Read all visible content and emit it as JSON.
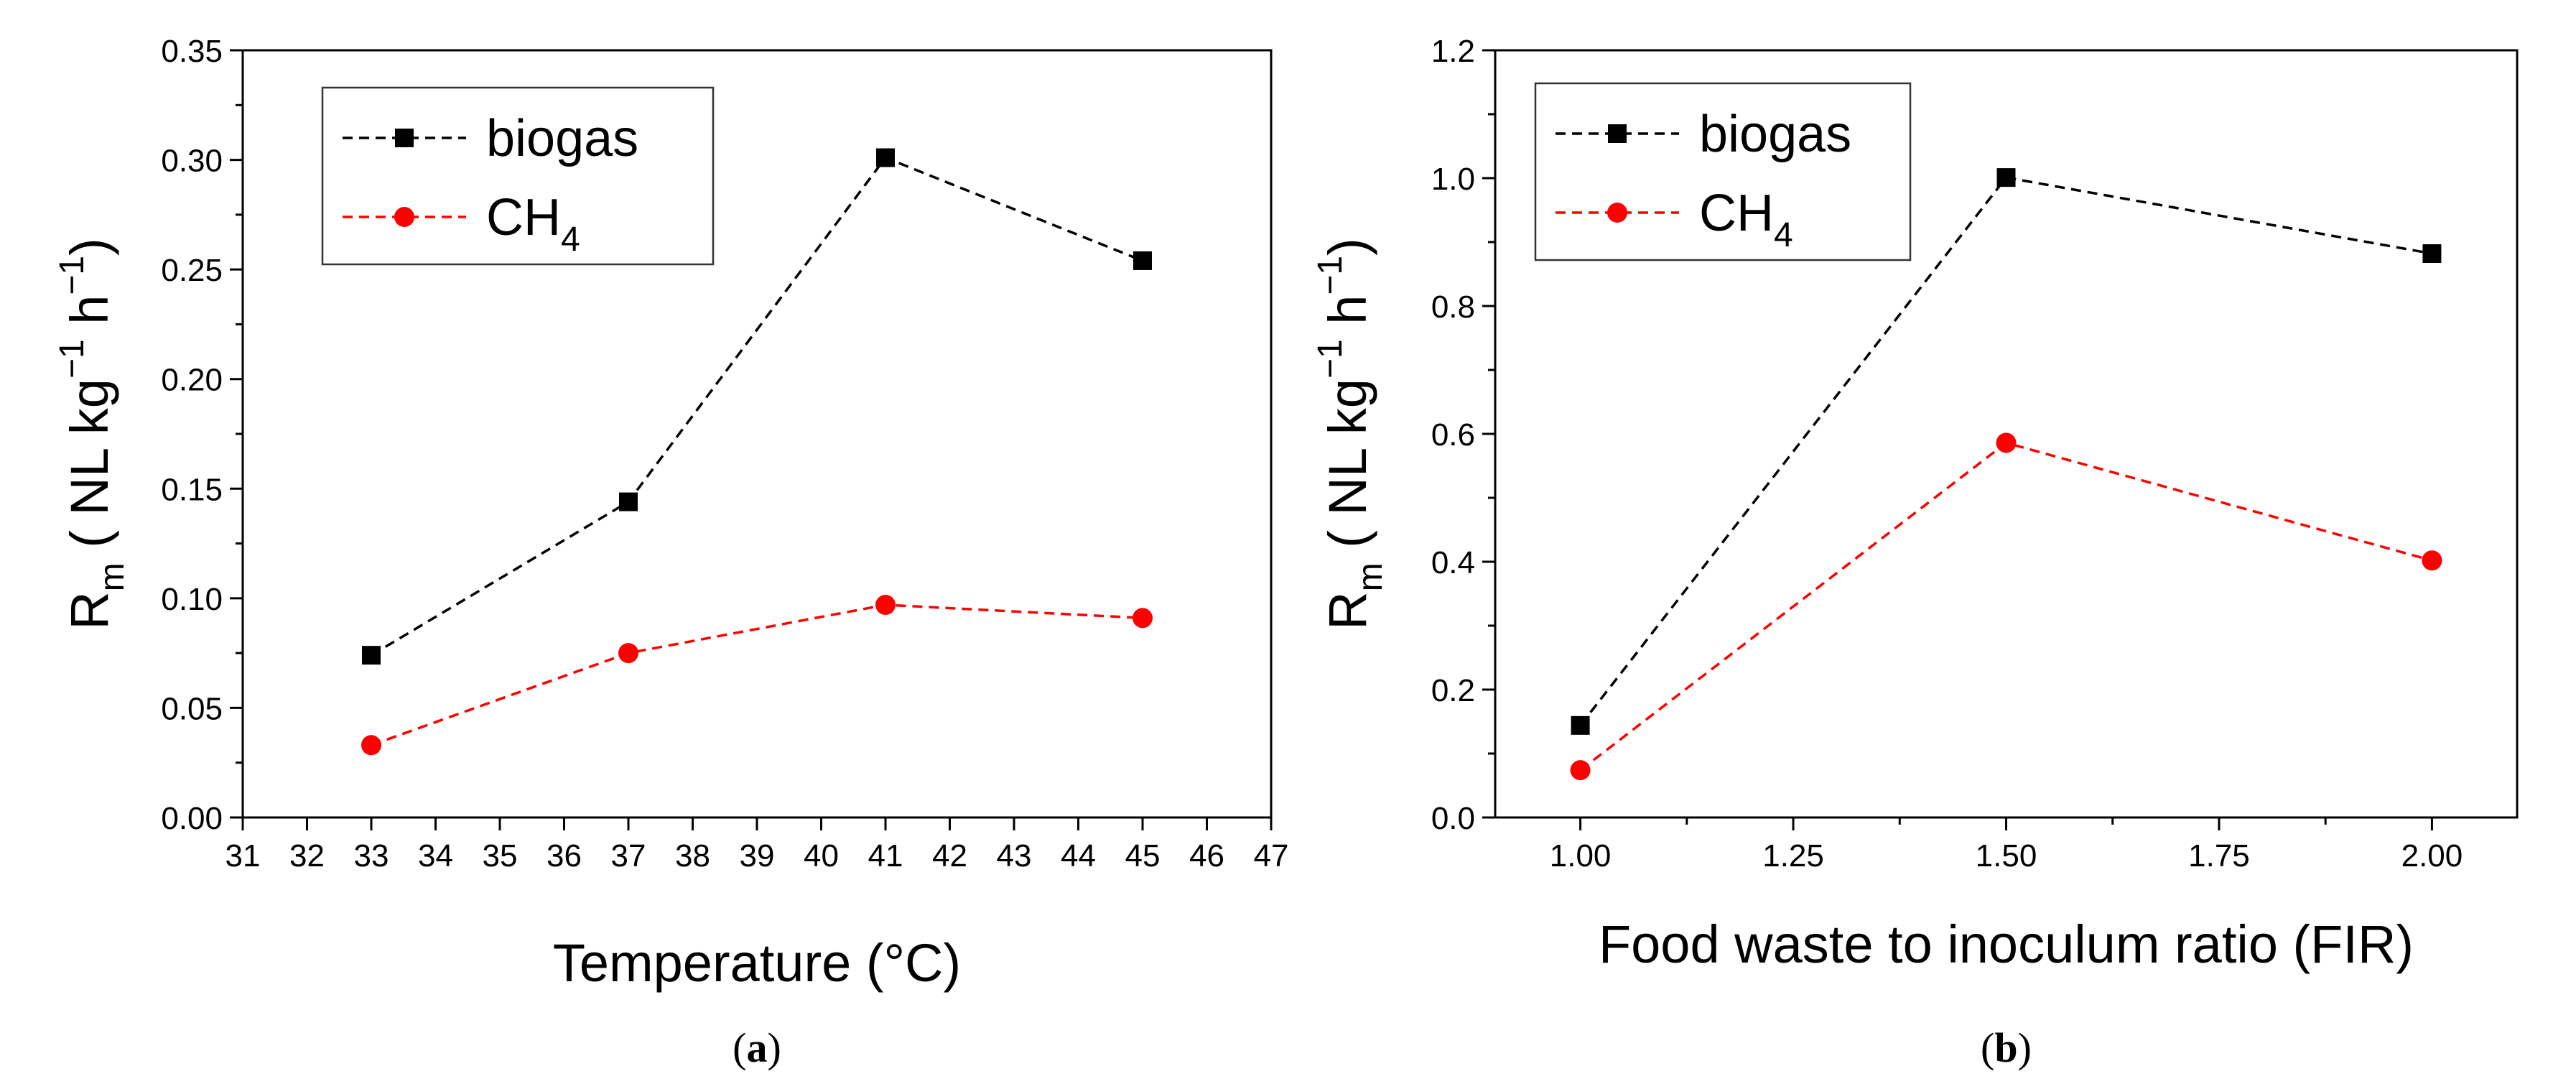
{
  "figure": {
    "colors": {
      "biogas": "#000000",
      "ch4": "#ff0000",
      "axis": "#000000"
    }
  },
  "chart_data": [
    {
      "id": "a",
      "type": "line",
      "panel_label": "a",
      "title": "",
      "xlabel": "Temperature (°C)",
      "ylabel_main": "R",
      "ylabel_sub": "m",
      "ylabel_unit_1": " ( NL kg",
      "ylabel_sup_1": "−1",
      "ylabel_unit_2": " h",
      "ylabel_sup_2": "−1",
      "ylabel_close": ")",
      "xlim": [
        31,
        47
      ],
      "ylim": [
        0,
        0.35
      ],
      "xticks": [
        31,
        32,
        33,
        34,
        35,
        36,
        37,
        38,
        39,
        40,
        41,
        42,
        43,
        44,
        45,
        46,
        47
      ],
      "xtick_labels": [
        "31",
        "32",
        "33",
        "34",
        "35",
        "36",
        "37",
        "38",
        "39",
        "40",
        "41",
        "42",
        "43",
        "44",
        "45",
        "46",
        "47"
      ],
      "yticks": [
        0,
        0.05,
        0.1,
        0.15,
        0.2,
        0.25,
        0.3,
        0.35
      ],
      "ytick_labels": [
        "0.00",
        "0.05",
        "0.10",
        "0.15",
        "0.20",
        "0.25",
        "0.30",
        "0.35"
      ],
      "legend_position": "top-left",
      "series": [
        {
          "name": "biogas",
          "marker": "square",
          "x": [
            33,
            37,
            41,
            45
          ],
          "values": [
            0.074,
            0.144,
            0.301,
            0.254
          ]
        },
        {
          "name": "CH",
          "name_sub": "4",
          "marker": "circle",
          "x": [
            33,
            37,
            41,
            45
          ],
          "values": [
            0.033,
            0.075,
            0.097,
            0.091
          ]
        }
      ]
    },
    {
      "id": "b",
      "type": "line",
      "panel_label": "b",
      "title": "",
      "xlabel": "Food waste to inoculum ratio (FIR)",
      "ylabel_main": "R",
      "ylabel_sub": "m",
      "ylabel_unit_1": " ( NL kg",
      "ylabel_sup_1": "−1",
      "ylabel_unit_2": " h",
      "ylabel_sup_2": "−1",
      "ylabel_close": ")",
      "xlim": [
        0.9,
        2.1
      ],
      "ylim": [
        0,
        1.2
      ],
      "xticks": [
        1.0,
        1.25,
        1.5,
        1.75,
        2.0
      ],
      "xtick_labels": [
        "1.00",
        "1.25",
        "1.50",
        "1.75",
        "2.00"
      ],
      "yticks": [
        0,
        0.2,
        0.4,
        0.6,
        0.8,
        1.0,
        1.2
      ],
      "ytick_labels": [
        "0.0",
        "0.2",
        "0.4",
        "0.6",
        "0.8",
        "1.0",
        "1.2"
      ],
      "legend_position": "top-left",
      "series": [
        {
          "name": "biogas",
          "marker": "square",
          "x": [
            1.0,
            1.5,
            2.0
          ],
          "values": [
            0.144,
            1.001,
            0.882
          ]
        },
        {
          "name": "CH",
          "name_sub": "4",
          "marker": "circle",
          "x": [
            1.0,
            1.5,
            2.0
          ],
          "values": [
            0.074,
            0.586,
            0.402
          ]
        }
      ]
    }
  ]
}
